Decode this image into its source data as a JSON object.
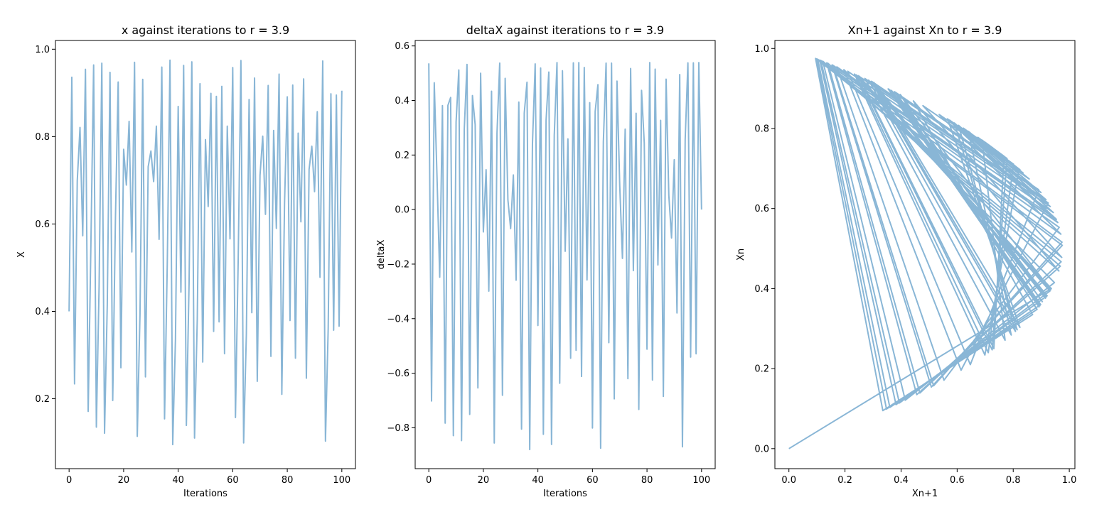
{
  "chart_data": [
    {
      "type": "line",
      "title": "x against iterations to r = 3.9",
      "xlabel": "Iterations",
      "ylabel": "X",
      "xlim": [
        -5,
        105
      ],
      "ylim": [
        0.04,
        1.02
      ],
      "xticks": [
        0,
        20,
        40,
        60,
        80,
        100
      ],
      "yticks": [
        0.2,
        0.4,
        0.6,
        0.8,
        1.0
      ],
      "grid": false,
      "color": "#89b6d6",
      "series": [
        {
          "x": [
            0,
            1,
            2,
            3,
            4,
            5,
            6,
            7,
            8,
            9,
            10,
            11,
            12,
            13,
            14,
            15,
            16,
            17,
            18,
            19,
            20,
            21,
            22,
            23,
            24,
            25,
            26,
            27,
            28,
            29,
            30,
            31,
            32,
            33,
            34,
            35,
            36,
            37,
            38,
            39,
            40,
            41,
            42,
            43,
            44,
            45,
            46,
            47,
            48,
            49,
            50,
            51,
            52,
            53,
            54,
            55,
            56,
            57,
            58,
            59,
            60,
            61,
            62,
            63,
            64,
            65,
            66,
            67,
            68,
            69,
            70,
            71,
            72,
            73,
            74,
            75,
            76,
            77,
            78,
            79,
            80,
            81,
            82,
            83,
            84,
            85,
            86,
            87,
            88,
            89,
            90,
            91,
            92,
            93,
            94,
            95,
            96,
            97,
            98,
            99,
            100
          ],
          "y": [
            0.4,
            0.936,
            0.234,
            0.699,
            0.821,
            0.573,
            0.954,
            0.171,
            0.553,
            0.964,
            0.135,
            0.456,
            0.968,
            0.121,
            0.415,
            0.947,
            0.196,
            0.614,
            0.925,
            0.271,
            0.771,
            0.689,
            0.835,
            0.536,
            0.97,
            0.114,
            0.394,
            0.931,
            0.25,
            0.731,
            0.767,
            0.697,
            0.824,
            0.565,
            0.959,
            0.154,
            0.508,
            0.975,
            0.095,
            0.335,
            0.869,
            0.444,
            0.963,
            0.139,
            0.467,
            0.971,
            0.11,
            0.382,
            0.921,
            0.284,
            0.793,
            0.64,
            0.899,
            0.354,
            0.892,
            0.376,
            0.915,
            0.303,
            0.824,
            0.566,
            0.958,
            0.157,
            0.516,
            0.974,
            0.099,
            0.348,
            0.885,
            0.397,
            0.934,
            0.24,
            0.711,
            0.801,
            0.622,
            0.917,
            0.297,
            0.814,
            0.59,
            0.943,
            0.21,
            0.647,
            0.891,
            0.379,
            0.918,
            0.293,
            0.808,
            0.605,
            0.932,
            0.247,
            0.725,
            0.778,
            0.674,
            0.857,
            0.478,
            0.973,
            0.103,
            0.36,
            0.898,
            0.357,
            0.895,
            0.366,
            0.905
          ]
        }
      ]
    },
    {
      "type": "line",
      "title": "deltaX against iterations to r = 3.9",
      "xlabel": "Iterations",
      "ylabel": "deltaX",
      "xlim": [
        -5,
        105
      ],
      "ylim": [
        -0.95,
        0.62
      ],
      "xticks": [
        0,
        20,
        40,
        60,
        80,
        100
      ],
      "yticks": [
        -0.8,
        -0.6,
        -0.4,
        -0.2,
        0.0,
        0.2,
        0.4,
        0.6
      ],
      "grid": false,
      "color": "#89b6d6",
      "series": [
        {
          "x": [
            0,
            1,
            2,
            3,
            4,
            5,
            6,
            7,
            8,
            9,
            10,
            11,
            12,
            13,
            14,
            15,
            16,
            17,
            18,
            19,
            20,
            21,
            22,
            23,
            24,
            25,
            26,
            27,
            28,
            29,
            30,
            31,
            32,
            33,
            34,
            35,
            36,
            37,
            38,
            39,
            40,
            41,
            42,
            43,
            44,
            45,
            46,
            47,
            48,
            49,
            50,
            51,
            52,
            53,
            54,
            55,
            56,
            57,
            58,
            59,
            60,
            61,
            62,
            63,
            64,
            65,
            66,
            67,
            68,
            69,
            70,
            71,
            72,
            73,
            74,
            75,
            76,
            77,
            78,
            79,
            80,
            81,
            82,
            83,
            84,
            85,
            86,
            87,
            88,
            89,
            90,
            91,
            92,
            93,
            94,
            95,
            96,
            97,
            98,
            99,
            100
          ],
          "y": [
            0.536,
            -0.702,
            0.465,
            0.122,
            -0.248,
            0.381,
            -0.783,
            0.382,
            0.411,
            -0.829,
            0.321,
            0.512,
            -0.847,
            0.294,
            0.532,
            -0.751,
            0.418,
            0.311,
            -0.654,
            0.5,
            -0.082,
            0.146,
            -0.299,
            0.434,
            -0.856,
            0.28,
            0.537,
            -0.681,
            0.481,
            0.036,
            -0.07,
            0.127,
            -0.259,
            0.394,
            -0.805,
            0.354,
            0.467,
            -0.88,
            0.24,
            0.534,
            -0.425,
            0.519,
            -0.824,
            0.328,
            0.504,
            -0.861,
            0.272,
            0.539,
            -0.637,
            0.509,
            -0.153,
            0.259,
            -0.545,
            0.538,
            -0.516,
            0.539,
            -0.612,
            0.521,
            -0.258,
            0.392,
            -0.801,
            0.359,
            0.458,
            -0.875,
            0.249,
            0.537,
            -0.488,
            0.537,
            -0.694,
            0.471,
            0.09,
            -0.179,
            0.295,
            -0.62,
            0.517,
            -0.224,
            0.353,
            -0.733,
            0.437,
            0.244,
            -0.512,
            0.539,
            -0.625,
            0.515,
            -0.203,
            0.327,
            -0.685,
            0.478,
            0.053,
            -0.104,
            0.183,
            -0.379,
            0.495,
            -0.87,
            0.257,
            0.538,
            -0.541,
            0.538,
            -0.529,
            0.539,
            0.0
          ]
        }
      ]
    },
    {
      "type": "line",
      "title": "Xn+1 against Xn to r = 3.9",
      "xlabel": "Xn+1",
      "ylabel": "Xn",
      "xlim": [
        -0.05,
        1.02
      ],
      "ylim": [
        -0.05,
        1.02
      ],
      "xticks": [
        0.0,
        0.2,
        0.4,
        0.6,
        0.8,
        1.0
      ],
      "yticks": [
        0.0,
        0.2,
        0.4,
        0.6,
        0.8,
        1.0
      ],
      "grid": false,
      "color": "#89b6d6",
      "series": [
        {
          "x": [
            0.0,
            0.936,
            0.234,
            0.699,
            0.821,
            0.573,
            0.954,
            0.171,
            0.553,
            0.964,
            0.135,
            0.456,
            0.968,
            0.121,
            0.415,
            0.947,
            0.196,
            0.614,
            0.925,
            0.271,
            0.771,
            0.689,
            0.835,
            0.536,
            0.97,
            0.114,
            0.394,
            0.931,
            0.25,
            0.731,
            0.767,
            0.697,
            0.824,
            0.565,
            0.959,
            0.154,
            0.508,
            0.975,
            0.095,
            0.335,
            0.869,
            0.444,
            0.963,
            0.139,
            0.467,
            0.971,
            0.11,
            0.382,
            0.921,
            0.284,
            0.793,
            0.64,
            0.899,
            0.354,
            0.892,
            0.376,
            0.915,
            0.303,
            0.824,
            0.566,
            0.958,
            0.157,
            0.516,
            0.974,
            0.099,
            0.348,
            0.885,
            0.397,
            0.934,
            0.24,
            0.711,
            0.801,
            0.622,
            0.917,
            0.297,
            0.814,
            0.59,
            0.943,
            0.21,
            0.647,
            0.891,
            0.379,
            0.918,
            0.293,
            0.808,
            0.605,
            0.932,
            0.247,
            0.725,
            0.778,
            0.674,
            0.857,
            0.478,
            0.973,
            0.103,
            0.36,
            0.898,
            0.357,
            0.895,
            0.366,
            0.905
          ],
          "y": [
            0.0,
            0.4,
            0.936,
            0.234,
            0.699,
            0.821,
            0.573,
            0.954,
            0.171,
            0.553,
            0.964,
            0.135,
            0.456,
            0.968,
            0.121,
            0.415,
            0.947,
            0.196,
            0.614,
            0.925,
            0.271,
            0.771,
            0.689,
            0.835,
            0.536,
            0.97,
            0.114,
            0.394,
            0.931,
            0.25,
            0.731,
            0.767,
            0.697,
            0.824,
            0.565,
            0.959,
            0.154,
            0.508,
            0.975,
            0.095,
            0.335,
            0.869,
            0.444,
            0.963,
            0.139,
            0.467,
            0.971,
            0.11,
            0.382,
            0.921,
            0.284,
            0.793,
            0.64,
            0.899,
            0.354,
            0.892,
            0.376,
            0.915,
            0.303,
            0.824,
            0.566,
            0.958,
            0.157,
            0.516,
            0.974,
            0.099,
            0.348,
            0.885,
            0.397,
            0.934,
            0.24,
            0.711,
            0.801,
            0.622,
            0.917,
            0.297,
            0.814,
            0.59,
            0.943,
            0.21,
            0.647,
            0.891,
            0.379,
            0.918,
            0.293,
            0.808,
            0.605,
            0.932,
            0.247,
            0.725,
            0.778,
            0.674,
            0.857,
            0.478,
            0.973,
            0.103,
            0.36,
            0.898,
            0.357,
            0.895,
            0.366
          ]
        }
      ]
    }
  ]
}
